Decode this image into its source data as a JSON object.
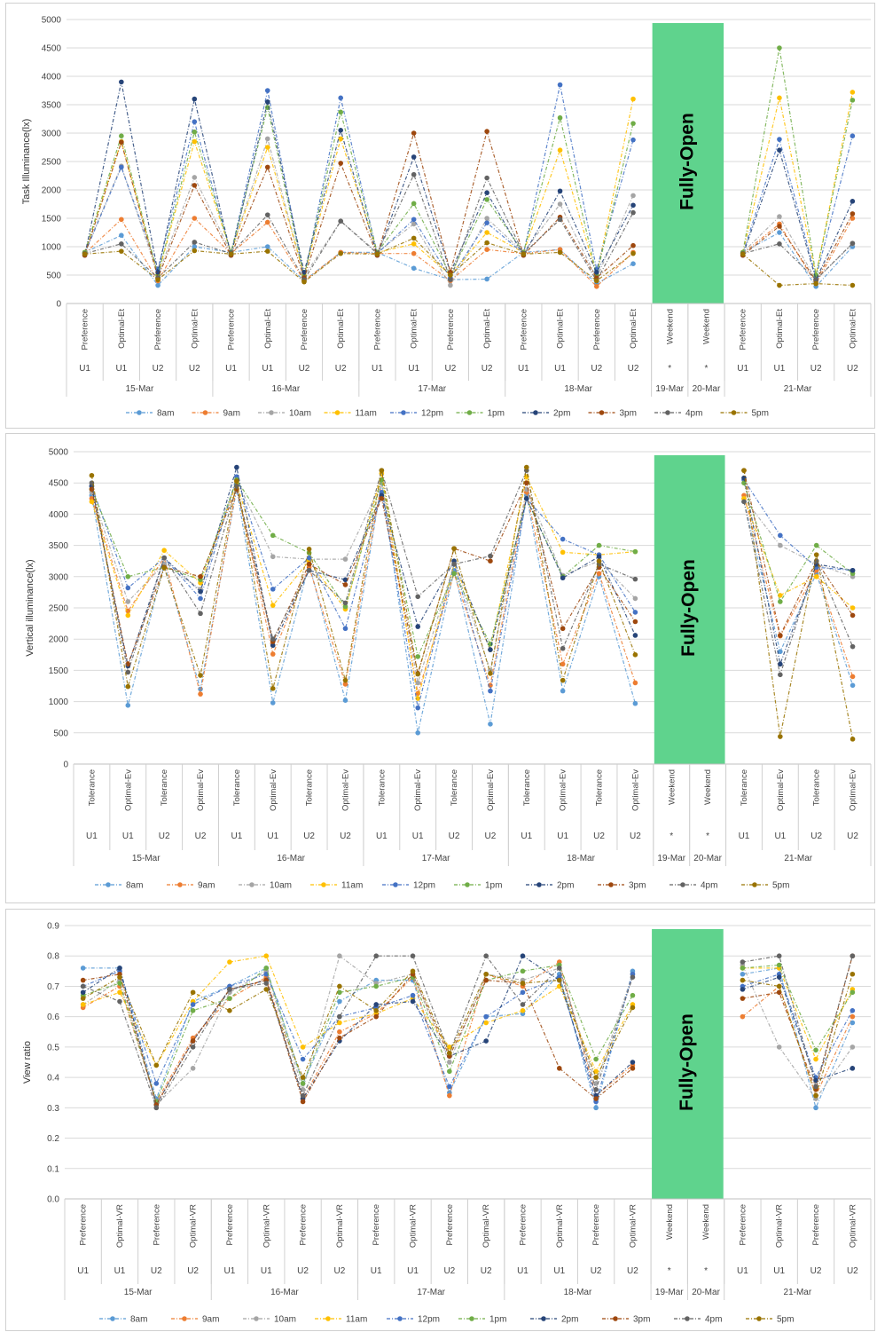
{
  "legend_labels": [
    "8am",
    "9am",
    "10am",
    "11am",
    "12pm",
    "1pm",
    "2pm",
    "3pm",
    "4pm",
    "5pm"
  ],
  "series_colors": [
    "#5b9bd5",
    "#ed7d31",
    "#a5a5a5",
    "#ffc000",
    "#4472c4",
    "#70ad47",
    "#264478",
    "#9e480e",
    "#636363",
    "#997300"
  ],
  "overlay": {
    "label": "Fully-Open",
    "color": "#5fd38d"
  },
  "weekend_marker": "*",
  "chart_data": [
    {
      "type": "line",
      "ylabel": "Task Illuminance(lx)",
      "ylim": [
        0,
        5000
      ],
      "yticks": [
        0,
        500,
        1000,
        1500,
        2000,
        2500,
        3000,
        3500,
        4000,
        4500,
        5000
      ],
      "categories": [
        "Preference",
        "Optimal-Et",
        "Preference",
        "Optimal-Et",
        "Preference",
        "Optimal-Et",
        "Preference",
        "Optimal-Et",
        "Preference",
        "Optimal-Et",
        "Preference",
        "Optimal-Et",
        "Preference",
        "Optimal-Et",
        "Preference",
        "Optimal-Et",
        "Weekend",
        "Weekend",
        "Preference",
        "Optimal-Et",
        "Preference",
        "Optimal-Et"
      ],
      "users": [
        "U1",
        "U1",
        "U2",
        "U2",
        "U1",
        "U1",
        "U2",
        "U2",
        "U1",
        "U1",
        "U2",
        "U2",
        "U1",
        "U1",
        "U2",
        "U2",
        "*",
        "*",
        "U1",
        "U1",
        "U2",
        "U2"
      ],
      "dates": [
        {
          "label": "15-Mar",
          "span": 4
        },
        {
          "label": "16-Mar",
          "span": 4
        },
        {
          "label": "17-Mar",
          "span": 4
        },
        {
          "label": "18-Mar",
          "span": 4
        },
        {
          "label": "19-Mar",
          "span": 1
        },
        {
          "label": "20-Mar",
          "span": 1
        },
        {
          "label": "21-Mar",
          "span": 4
        }
      ],
      "series": [
        {
          "name": "8am",
          "values": [
            900,
            1200,
            320,
            1000,
            900,
            1000,
            400,
            900,
            900,
            620,
            420,
            430,
            900,
            950,
            350,
            700,
            null,
            null,
            900,
            1250,
            300,
            1000
          ]
        },
        {
          "name": "9am",
          "values": [
            880,
            1480,
            400,
            1500,
            880,
            1430,
            400,
            900,
            880,
            880,
            400,
            950,
            880,
            950,
            300,
            900,
            null,
            null,
            880,
            1400,
            350,
            1500
          ]
        },
        {
          "name": "10am",
          "values": [
            900,
            2420,
            500,
            2220,
            900,
            2900,
            480,
            1450,
            900,
            1400,
            320,
            1500,
            900,
            1750,
            450,
            1900,
            null,
            null,
            900,
            1530,
            420,
            1050
          ]
        },
        {
          "name": "11am",
          "values": [
            900,
            2850,
            500,
            2850,
            900,
            2750,
            500,
            2900,
            900,
            1050,
            500,
            1250,
            900,
            2700,
            500,
            3600,
            null,
            null,
            900,
            3620,
            500,
            3720
          ]
        },
        {
          "name": "12pm",
          "values": [
            880,
            2400,
            600,
            3200,
            880,
            3750,
            450,
            3620,
            880,
            1480,
            450,
            1420,
            880,
            3850,
            600,
            2880,
            null,
            null,
            880,
            2890,
            460,
            2950
          ]
        },
        {
          "name": "1pm",
          "values": [
            900,
            2950,
            500,
            3020,
            900,
            3450,
            480,
            3370,
            900,
            1760,
            500,
            1830,
            900,
            3270,
            500,
            3170,
            null,
            null,
            900,
            4500,
            500,
            3580
          ]
        },
        {
          "name": "2pm",
          "values": [
            850,
            3900,
            550,
            3600,
            850,
            3550,
            550,
            3050,
            850,
            2580,
            550,
            1950,
            850,
            1980,
            550,
            1730,
            null,
            null,
            850,
            2700,
            420,
            1800
          ]
        },
        {
          "name": "3pm",
          "values": [
            850,
            2840,
            450,
            2080,
            850,
            2400,
            450,
            2470,
            850,
            3000,
            550,
            3030,
            850,
            1520,
            450,
            1020,
            null,
            null,
            850,
            1360,
            400,
            1580
          ]
        },
        {
          "name": "4pm",
          "values": [
            880,
            1050,
            450,
            1080,
            880,
            1560,
            420,
            1450,
            880,
            2270,
            420,
            2210,
            880,
            1480,
            400,
            1600,
            null,
            null,
            880,
            1050,
            420,
            1060
          ]
        },
        {
          "name": "5pm",
          "values": [
            870,
            920,
            420,
            930,
            870,
            920,
            380,
            880,
            870,
            1150,
            500,
            1070,
            870,
            900,
            400,
            880,
            null,
            null,
            870,
            320,
            350,
            320
          ]
        }
      ]
    },
    {
      "type": "line",
      "ylabel": "Vertical illuminance(lx)",
      "ylim": [
        0,
        5000
      ],
      "yticks": [
        0,
        500,
        1000,
        1500,
        2000,
        2500,
        3000,
        3500,
        4000,
        4500,
        5000
      ],
      "categories": [
        "Tolerance",
        "Optimal-Ev",
        "Tolerance",
        "Optimal-Ev",
        "Tolerance",
        "Optimal-Ev",
        "Tolerance",
        "Optimal-Ev",
        "Tolerance",
        "Optimal-Ev",
        "Tolerance",
        "Optimal-Ev",
        "Tolerance",
        "Optimal-Ev",
        "Tolerance",
        "Optimal-Ev",
        "Weekend",
        "Weekend",
        "Tolerance",
        "Optimal-Ev",
        "Tolerance",
        "Optimal-Ev"
      ],
      "users": [
        "U1",
        "U1",
        "U2",
        "U2",
        "U1",
        "U1",
        "U2",
        "U2",
        "U1",
        "U1",
        "U2",
        "U2",
        "U1",
        "U1",
        "U2",
        "U2",
        "*",
        "*",
        "U1",
        "U1",
        "U2",
        "U2"
      ],
      "dates": [
        {
          "label": "15-Mar",
          "span": 4
        },
        {
          "label": "16-Mar",
          "span": 4
        },
        {
          "label": "17-Mar",
          "span": 4
        },
        {
          "label": "18-Mar",
          "span": 4
        },
        {
          "label": "19-Mar",
          "span": 1
        },
        {
          "label": "20-Mar",
          "span": 1
        },
        {
          "label": "21-Mar",
          "span": 4
        }
      ],
      "series": [
        {
          "name": "8am",
          "values": [
            4300,
            940,
            3200,
            1200,
            4400,
            980,
            3200,
            1020,
            4500,
            500,
            3100,
            640,
            4300,
            1170,
            3000,
            970,
            null,
            null,
            4200,
            1800,
            3050,
            1260
          ]
        },
        {
          "name": "9am",
          "values": [
            4250,
            2450,
            3300,
            1120,
            4450,
            1760,
            3150,
            1280,
            4500,
            1130,
            3050,
            1260,
            4350,
            1600,
            3050,
            1300,
            null,
            null,
            4300,
            2050,
            3100,
            1400
          ]
        },
        {
          "name": "10am",
          "values": [
            4350,
            2600,
            3200,
            2800,
            4550,
            3320,
            3280,
            3280,
            4500,
            1300,
            3200,
            1500,
            4400,
            3020,
            3250,
            2650,
            null,
            null,
            4250,
            3500,
            3200,
            3000
          ]
        },
        {
          "name": "11am",
          "values": [
            4200,
            2380,
            3420,
            2900,
            4500,
            2540,
            3250,
            2480,
            4650,
            1050,
            3200,
            1830,
            4600,
            3390,
            3350,
            3400,
            null,
            null,
            4250,
            2700,
            3000,
            2500
          ]
        },
        {
          "name": "12pm",
          "values": [
            4450,
            2820,
            3300,
            2650,
            4600,
            2800,
            3300,
            2170,
            4350,
            900,
            3200,
            1170,
            4250,
            3600,
            3350,
            2430,
            null,
            null,
            4550,
            3660,
            3150,
            3100
          ]
        },
        {
          "name": "1pm",
          "values": [
            4400,
            3000,
            3150,
            2950,
            4550,
            3660,
            3380,
            2520,
            4550,
            1720,
            3050,
            1920,
            4250,
            3000,
            3500,
            3400,
            null,
            null,
            4500,
            2600,
            3500,
            3050
          ]
        },
        {
          "name": "2pm",
          "values": [
            4450,
            1570,
            3300,
            2760,
            4750,
            1900,
            3100,
            2950,
            4300,
            2200,
            3250,
            1830,
            4250,
            2980,
            3320,
            2060,
            null,
            null,
            4580,
            1600,
            3200,
            3100
          ]
        },
        {
          "name": "3pm",
          "values": [
            4400,
            1600,
            3150,
            3000,
            4400,
            1960,
            3200,
            2870,
            4250,
            1450,
            3450,
            3250,
            4500,
            2170,
            3150,
            2280,
            null,
            null,
            4700,
            2060,
            3250,
            2380
          ]
        },
        {
          "name": "4pm",
          "values": [
            4500,
            1470,
            3300,
            2410,
            4450,
            2000,
            3100,
            2580,
            4700,
            2680,
            3200,
            3330,
            4700,
            1850,
            3200,
            2960,
            null,
            null,
            4200,
            1430,
            3250,
            1880
          ]
        },
        {
          "name": "5pm",
          "values": [
            4620,
            1240,
            3140,
            1420,
            4530,
            1210,
            3440,
            1340,
            4700,
            1440,
            3450,
            1450,
            4750,
            1340,
            3250,
            1750,
            null,
            null,
            4700,
            440,
            3350,
            400
          ]
        }
      ]
    },
    {
      "type": "line",
      "ylabel": "View ratio",
      "ylim": [
        0,
        0.9
      ],
      "yticks": [
        0,
        0.1,
        0.2,
        0.3,
        0.4,
        0.5,
        0.6,
        0.7,
        0.8,
        0.9
      ],
      "categories": [
        "Preference",
        "Optimal-VR",
        "Preference",
        "Optimal-VR",
        "Preference",
        "Optimal-VR",
        "Preference",
        "Optimal-VR",
        "Preference",
        "Optimal-VR",
        "Preference",
        "Optimal-VR",
        "Preference",
        "Optimal-VR",
        "Preference",
        "Optimal-VR",
        "Weekend",
        "Weekend",
        "Preference",
        "Optimal-VR",
        "Preference",
        "Optimal-VR"
      ],
      "users": [
        "U1",
        "U1",
        "U2",
        "U2",
        "U1",
        "U1",
        "U2",
        "U2",
        "U1",
        "U1",
        "U2",
        "U2",
        "U1",
        "U1",
        "U2",
        "U2",
        "*",
        "*",
        "U1",
        "U1",
        "U2",
        "U2"
      ],
      "dates": [
        {
          "label": "15-Mar",
          "span": 4
        },
        {
          "label": "16-Mar",
          "span": 4
        },
        {
          "label": "17-Mar",
          "span": 4
        },
        {
          "label": "18-Mar",
          "span": 4
        },
        {
          "label": "19-Mar",
          "span": 1
        },
        {
          "label": "20-Mar",
          "span": 1
        },
        {
          "label": "21-Mar",
          "span": 4
        }
      ],
      "series": [
        {
          "name": "8am",
          "values": [
            0.76,
            0.76,
            0.33,
            0.65,
            0.7,
            0.76,
            0.38,
            0.65,
            0.72,
            0.72,
            0.35,
            0.6,
            0.61,
            0.74,
            0.3,
            0.75,
            null,
            null,
            0.74,
            0.76,
            0.3,
            0.58
          ]
        },
        {
          "name": "9am",
          "values": [
            0.63,
            0.7,
            0.32,
            0.53,
            0.66,
            0.73,
            0.33,
            0.55,
            0.61,
            0.73,
            0.34,
            0.74,
            0.7,
            0.78,
            0.34,
            0.44,
            null,
            null,
            0.6,
            0.7,
            0.34,
            0.6
          ]
        },
        {
          "name": "10am",
          "values": [
            0.64,
            0.72,
            0.31,
            0.43,
            0.68,
            0.75,
            0.36,
            0.8,
            0.71,
            0.74,
            0.45,
            0.74,
            0.72,
            0.76,
            0.38,
            0.74,
            null,
            null,
            0.77,
            0.5,
            0.33,
            0.5
          ]
        },
        {
          "name": "11am",
          "values": [
            0.64,
            0.68,
            0.44,
            0.65,
            0.78,
            0.8,
            0.5,
            0.58,
            0.61,
            0.66,
            0.5,
            0.58,
            0.62,
            0.7,
            0.42,
            0.64,
            null,
            null,
            0.76,
            0.76,
            0.46,
            0.69
          ]
        },
        {
          "name": "12pm",
          "values": [
            0.7,
            0.75,
            0.38,
            0.64,
            0.7,
            0.74,
            0.46,
            0.6,
            0.63,
            0.67,
            0.37,
            0.6,
            0.68,
            0.73,
            0.32,
            0.74,
            null,
            null,
            0.7,
            0.74,
            0.4,
            0.62
          ]
        },
        {
          "name": "1pm",
          "values": [
            0.67,
            0.71,
            0.32,
            0.62,
            0.66,
            0.76,
            0.38,
            0.68,
            0.7,
            0.73,
            0.42,
            0.72,
            0.75,
            0.77,
            0.46,
            0.67,
            null,
            null,
            0.76,
            0.77,
            0.49,
            0.68
          ]
        },
        {
          "name": "2pm",
          "values": [
            0.68,
            0.76,
            0.31,
            0.52,
            0.69,
            0.72,
            0.33,
            0.52,
            0.64,
            0.65,
            0.47,
            0.52,
            0.8,
            0.72,
            0.34,
            0.45,
            null,
            null,
            0.69,
            0.73,
            0.39,
            0.43
          ]
        },
        {
          "name": "3pm",
          "values": [
            0.72,
            0.74,
            0.31,
            0.52,
            0.69,
            0.72,
            0.32,
            0.53,
            0.6,
            0.74,
            0.47,
            0.72,
            0.71,
            0.43,
            0.33,
            0.43,
            null,
            null,
            0.66,
            0.68,
            0.36,
            0.8
          ]
        },
        {
          "name": "4pm",
          "values": [
            0.7,
            0.65,
            0.3,
            0.5,
            0.69,
            0.71,
            0.34,
            0.6,
            0.8,
            0.8,
            0.48,
            0.8,
            0.64,
            0.76,
            0.36,
            0.73,
            null,
            null,
            0.78,
            0.8,
            0.37,
            0.8
          ]
        },
        {
          "name": "5pm",
          "values": [
            0.66,
            0.73,
            0.44,
            0.68,
            0.62,
            0.69,
            0.4,
            0.7,
            0.62,
            0.75,
            0.48,
            0.74,
            0.71,
            0.72,
            0.4,
            0.63,
            null,
            null,
            0.72,
            0.7,
            0.34,
            0.74
          ]
        }
      ]
    }
  ]
}
